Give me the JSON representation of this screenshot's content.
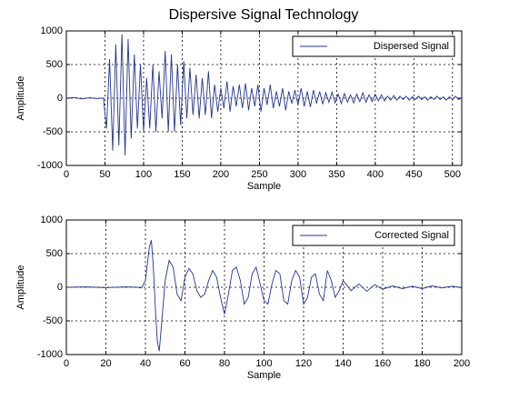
{
  "chart_data": [
    {
      "type": "line",
      "title": "Dispersive Signal Technology",
      "xlabel": "Sample",
      "ylabel": "Amplitude",
      "xlim": [
        0,
        512
      ],
      "ylim": [
        -1000,
        1000
      ],
      "xticks": [
        0,
        50,
        100,
        150,
        200,
        250,
        300,
        350,
        400,
        450,
        500
      ],
      "yticks": [
        -1000,
        -500,
        0,
        500,
        1000
      ],
      "grid": true,
      "legend": "upper right",
      "series": [
        {
          "name": "Dispersed Signal",
          "color": "#23358f",
          "x": [
            0,
            10,
            20,
            30,
            40,
            44,
            48,
            52,
            56,
            60,
            64,
            68,
            72,
            76,
            80,
            84,
            88,
            92,
            96,
            100,
            104,
            108,
            112,
            116,
            120,
            124,
            128,
            132,
            136,
            140,
            144,
            148,
            152,
            156,
            160,
            164,
            168,
            172,
            176,
            180,
            184,
            188,
            192,
            196,
            200,
            204,
            208,
            212,
            216,
            220,
            224,
            228,
            232,
            236,
            240,
            244,
            248,
            252,
            256,
            260,
            264,
            268,
            272,
            276,
            280,
            284,
            288,
            292,
            296,
            300,
            304,
            308,
            312,
            316,
            320,
            324,
            328,
            332,
            336,
            340,
            344,
            348,
            352,
            356,
            360,
            364,
            368,
            372,
            376,
            380,
            384,
            388,
            392,
            396,
            400,
            404,
            408,
            412,
            416,
            420,
            424,
            428,
            432,
            436,
            440,
            444,
            448,
            452,
            456,
            460,
            464,
            468,
            472,
            476,
            480,
            484,
            488,
            492,
            496,
            500,
            504,
            508,
            512
          ],
          "values": [
            0,
            10,
            -10,
            5,
            -5,
            0,
            0,
            -450,
            580,
            -780,
            800,
            -700,
            950,
            -850,
            880,
            -600,
            650,
            -450,
            500,
            -500,
            300,
            -450,
            500,
            -500,
            400,
            -300,
            700,
            -500,
            650,
            -500,
            500,
            -400,
            550,
            -300,
            450,
            -250,
            350,
            -300,
            300,
            -250,
            400,
            -300,
            200,
            -200,
            150,
            -150,
            250,
            -200,
            180,
            -120,
            200,
            -150,
            220,
            -180,
            150,
            -120,
            200,
            -200,
            150,
            -100,
            200,
            -150,
            100,
            -120,
            150,
            -180,
            100,
            -80,
            120,
            -100,
            150,
            -120,
            100,
            -130,
            120,
            -80,
            100,
            -90,
            80,
            -60,
            90,
            -70,
            60,
            -80,
            70,
            -60,
            50,
            -70,
            60,
            -50,
            80,
            -60,
            50,
            -50,
            60,
            -40,
            50,
            -40,
            30,
            -30,
            40,
            -30,
            30,
            -20,
            30,
            -30,
            20,
            -20,
            30,
            -20,
            20,
            -30,
            20,
            -20,
            30,
            -20,
            20,
            -30,
            20,
            -20,
            30,
            -20,
            10
          ]
        }
      ]
    },
    {
      "type": "line",
      "xlabel": "Sample",
      "ylabel": "Amplitude",
      "xlim": [
        0,
        200
      ],
      "ylim": [
        -1000,
        1000
      ],
      "xticks": [
        0,
        20,
        40,
        60,
        80,
        100,
        120,
        140,
        160,
        180,
        200
      ],
      "yticks": [
        -1000,
        -500,
        0,
        500,
        1000
      ],
      "grid": true,
      "legend": "upper right",
      "series": [
        {
          "name": "Corrected Signal",
          "color": "#23358f",
          "x": [
            0,
            10,
            20,
            30,
            36,
            38,
            40,
            42,
            43,
            44,
            45,
            46,
            47,
            48,
            50,
            52,
            54,
            56,
            58,
            60,
            62,
            64,
            66,
            68,
            70,
            72,
            74,
            76,
            78,
            80,
            82,
            84,
            86,
            88,
            90,
            92,
            94,
            96,
            98,
            100,
            102,
            104,
            106,
            108,
            110,
            112,
            114,
            116,
            118,
            120,
            122,
            124,
            126,
            128,
            130,
            132,
            134,
            136,
            138,
            140,
            144,
            148,
            152,
            156,
            160,
            165,
            170,
            175,
            180,
            185,
            190,
            195,
            200
          ],
          "values": [
            0,
            5,
            -5,
            5,
            0,
            -10,
            100,
            600,
            700,
            300,
            -300,
            -800,
            -950,
            -600,
            100,
            400,
            300,
            -100,
            -200,
            150,
            280,
            200,
            -50,
            -150,
            -100,
            100,
            250,
            150,
            -150,
            -400,
            -100,
            250,
            300,
            100,
            -250,
            -150,
            200,
            300,
            50,
            -200,
            -250,
            50,
            250,
            200,
            -200,
            -250,
            100,
            250,
            150,
            -250,
            -150,
            150,
            200,
            -100,
            -200,
            250,
            100,
            -150,
            -50,
            100,
            -50,
            50,
            -60,
            40,
            -30,
            20,
            -20,
            15,
            -20,
            20,
            -10,
            15,
            -5
          ]
        }
      ]
    }
  ]
}
